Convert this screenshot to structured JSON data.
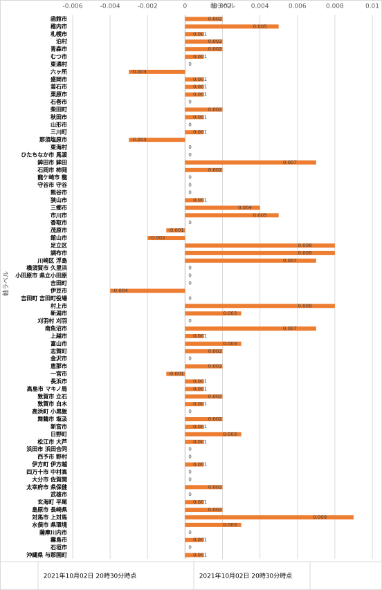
{
  "chart_data": {
    "type": "hbar",
    "x_label": "軸ラベル",
    "y_label": "軸ラベル",
    "categories": [
      "函館市",
      "稚内市",
      "札幌市",
      "泊村",
      "青森市",
      "むつ市",
      "東通村",
      "六ヶ所",
      "盛岡市",
      "釜石市",
      "栗原市",
      "石巻市",
      "柴田町",
      "秋田市",
      "山形市",
      "三川町",
      "那須塩原市",
      "東海村",
      "ひたちなか市 馬渡",
      "鉾田市 鉾田",
      "石岡市 柿岡",
      "龍ケ崎市 龍",
      "守谷市 守谷",
      "熊谷市",
      "狭山市",
      "三郷市",
      "市川市",
      "香取市",
      "茂原市",
      "館山市",
      "足立区",
      "調布市",
      "川崎区 浮島",
      "横須賀市 久里浜",
      "小田原市 県立小田原",
      "吉田町",
      "伊豆市",
      "吉田町 吉田町役場",
      "村上市",
      "新潟市",
      "刈羽村 刈羽",
      "南魚沼市",
      "上越市",
      "富山市",
      "志賀町",
      "金沢市",
      "恵那市",
      "一宮市",
      "長浜市",
      "高島市 マキノ局",
      "敦賀市 立石",
      "敦賀市 白木",
      "高浜町 小黒飯",
      "舞鶴市 塩汲",
      "新宮市",
      "日野町",
      "松江市 大芦",
      "浜田市 浜田合同",
      "西予市 野村",
      "伊方町 伊方越",
      "四万十市 中村高",
      "大分市 佐賀関",
      "太宰府市 県保健",
      "武雄市",
      "玄海町 平尾",
      "島原市 長崎県",
      "対馬市 上対馬",
      "水俣市 県環境",
      "薩摩川内市",
      "霧島市",
      "石垣市",
      "沖縄県 与那国町"
    ],
    "values": [
      0.002,
      0.005,
      0.001,
      0.002,
      0.002,
      0.001,
      0,
      -0.003,
      0.001,
      0.001,
      0.001,
      0,
      0.002,
      0.001,
      0,
      0.001,
      -0.003,
      0,
      0,
      0.007,
      0.002,
      0,
      0,
      0,
      0.001,
      0.004,
      0.005,
      0,
      -0.001,
      -0.002,
      0.008,
      0.008,
      0.007,
      0,
      0,
      0,
      -0.004,
      0,
      0.008,
      0.003,
      0,
      0.007,
      0.001,
      0.003,
      0.002,
      0,
      0.002,
      -0.001,
      0.001,
      0.001,
      0.002,
      0.001,
      0,
      0.002,
      0.001,
      0.003,
      0.001,
      0,
      0,
      0.001,
      0,
      0,
      0.002,
      0,
      0.001,
      0.002,
      0.009,
      0.003,
      0,
      0.001,
      0,
      0.001
    ],
    "color": "#ed7d31",
    "xlim": [
      -0.006,
      0.01
    ],
    "xticks": [
      -0.006,
      -0.004,
      -0.002,
      0,
      0.002,
      0.004,
      0.006,
      0.008,
      0.01
    ],
    "grid": true,
    "footer_labels": [
      "2021年10月02日 20時30分時点",
      "2021年10月02日 20時30分時点"
    ]
  }
}
